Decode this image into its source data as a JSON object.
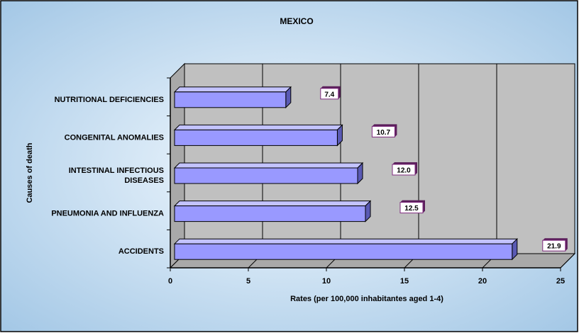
{
  "chart_data": {
    "type": "bar",
    "orientation": "horizontal",
    "title": "MEXICO",
    "xlabel": "Rates (per 100,000 inhabitantes aged 1-4)",
    "ylabel": "Causes of death",
    "categories": [
      "ACCIDENTS",
      "PNEUMONIA AND INFLUENZA",
      "INTESTINAL INFECTIOUS DISEASES",
      "CONGENITAL ANOMALIES",
      "NUTRITIONAL DEFICIENCIES"
    ],
    "category_lines": [
      [
        "ACCIDENTS"
      ],
      [
        "PNEUMONIA AND INFLUENZA"
      ],
      [
        "INTESTINAL INFECTIOUS",
        "DISEASES"
      ],
      [
        "CONGENITAL ANOMALIES"
      ],
      [
        "NUTRITIONAL DEFICIENCIES"
      ]
    ],
    "values": [
      21.9,
      12.5,
      12.0,
      10.7,
      7.4
    ],
    "data_labels": [
      "21.9",
      "12.5",
      "12.0",
      "10.7",
      "7.4"
    ],
    "x_ticks": [
      "0",
      "5",
      "10",
      "15",
      "20",
      "25"
    ],
    "xlim": [
      0,
      25
    ],
    "grid": true,
    "legend": "none",
    "colors": {
      "bar_front": "#9999ff",
      "bar_top": "#c3c3ff",
      "bar_side": "#5a5ab4",
      "plot_wall": "#c0c0c0",
      "plot_floor": "#a9a9a9",
      "label_fill": "#ffffff",
      "label_border": "#7f2b7f",
      "background_center": "#f4faff",
      "background_edge": "#9ec4e4"
    }
  }
}
